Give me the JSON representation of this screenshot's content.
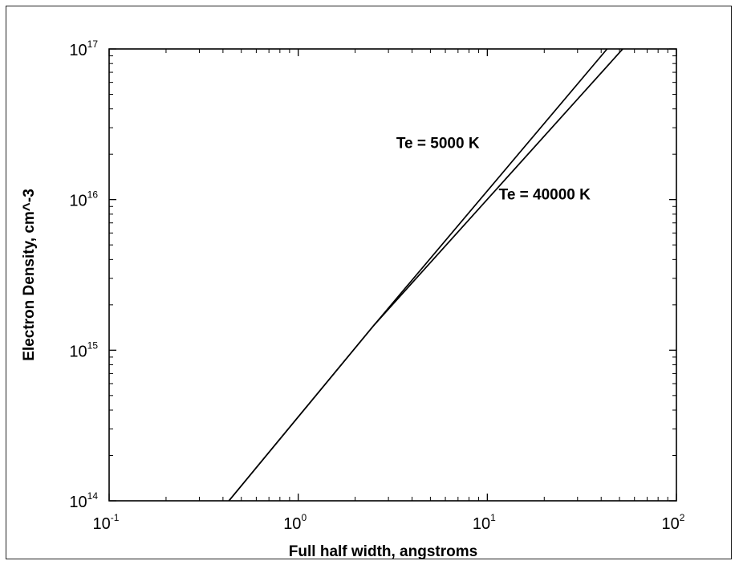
{
  "chart_data": {
    "type": "line",
    "title": "",
    "xlabel": "Full half width, angstroms",
    "ylabel": "Electron Density, cm^-3",
    "xscale": "log",
    "yscale": "log",
    "xlim": [
      0.1,
      100
    ],
    "ylim": [
      100000000000000.0,
      1e+17
    ],
    "grid": false,
    "x_ticks": [
      {
        "value": 0.1,
        "base": "10",
        "exp": "-1"
      },
      {
        "value": 1,
        "base": "10",
        "exp": "0"
      },
      {
        "value": 10,
        "base": "10",
        "exp": "1"
      },
      {
        "value": 100,
        "base": "10",
        "exp": "2"
      }
    ],
    "y_ticks": [
      {
        "value": 100000000000000.0,
        "base": "10",
        "exp": "14"
      },
      {
        "value": 1000000000000000.0,
        "base": "10",
        "exp": "15"
      },
      {
        "value": 1e+16,
        "base": "10",
        "exp": "16"
      },
      {
        "value": 1e+17,
        "base": "10",
        "exp": "17"
      }
    ],
    "series": [
      {
        "name": "Te = 5000 K",
        "x": [
          0.43,
          2.5,
          43
        ],
        "y": [
          100000000000000.0,
          1450000000000000.0,
          1e+17
        ]
      },
      {
        "name": "Te = 40000 K",
        "x": [
          0.43,
          2.5,
          52
        ],
        "y": [
          100000000000000.0,
          1450000000000000.0,
          1e+17
        ]
      }
    ],
    "annotations": [
      {
        "text": "Te = 5000 K",
        "x": 3.3,
        "y": 2.2e+16
      },
      {
        "text": "Te = 40000 K",
        "x": 11.5,
        "y": 1e+16
      }
    ],
    "colors": {
      "line": "#000000",
      "axis": "#000000",
      "background": "#ffffff"
    }
  }
}
